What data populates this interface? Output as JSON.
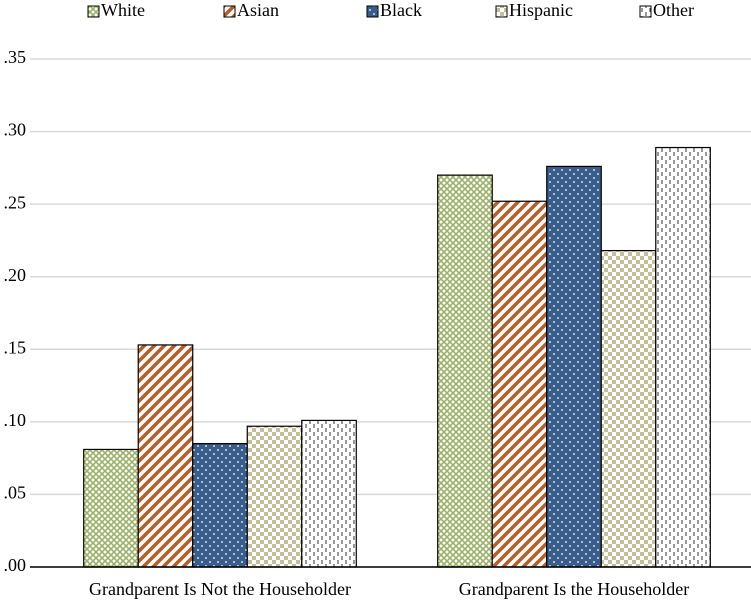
{
  "chart_data": {
    "type": "bar",
    "categories": [
      "Grandparent Is Not the Householder",
      "Grandparent Is the Householder"
    ],
    "series": [
      {
        "name": "White",
        "color": "#9bb369",
        "values": [
          0.081,
          0.27
        ]
      },
      {
        "name": "Asian",
        "color": "#b5602a",
        "values": [
          0.153,
          0.252
        ]
      },
      {
        "name": "Black",
        "color": "#3a5e8c",
        "values": [
          0.085,
          0.276
        ]
      },
      {
        "name": "Hispanic",
        "color": "#c4bf98",
        "values": [
          0.097,
          0.218
        ]
      },
      {
        "name": "Other",
        "color": "#555555",
        "values": [
          0.101,
          0.289
        ]
      }
    ],
    "ylim": [
      0,
      0.35
    ],
    "yticks": [
      {
        "value": 0,
        "label": ".00"
      },
      {
        "value": 0.05,
        "label": ".05"
      },
      {
        "value": 0.1,
        "label": ".10"
      },
      {
        "value": 0.15,
        "label": ".15"
      },
      {
        "value": 0.2,
        "label": ".20"
      },
      {
        "value": 0.25,
        "label": ".25"
      },
      {
        "value": 0.3,
        "label": ".30"
      },
      {
        "value": 0.35,
        "label": ".35"
      }
    ],
    "grid": true,
    "legend": "top"
  }
}
